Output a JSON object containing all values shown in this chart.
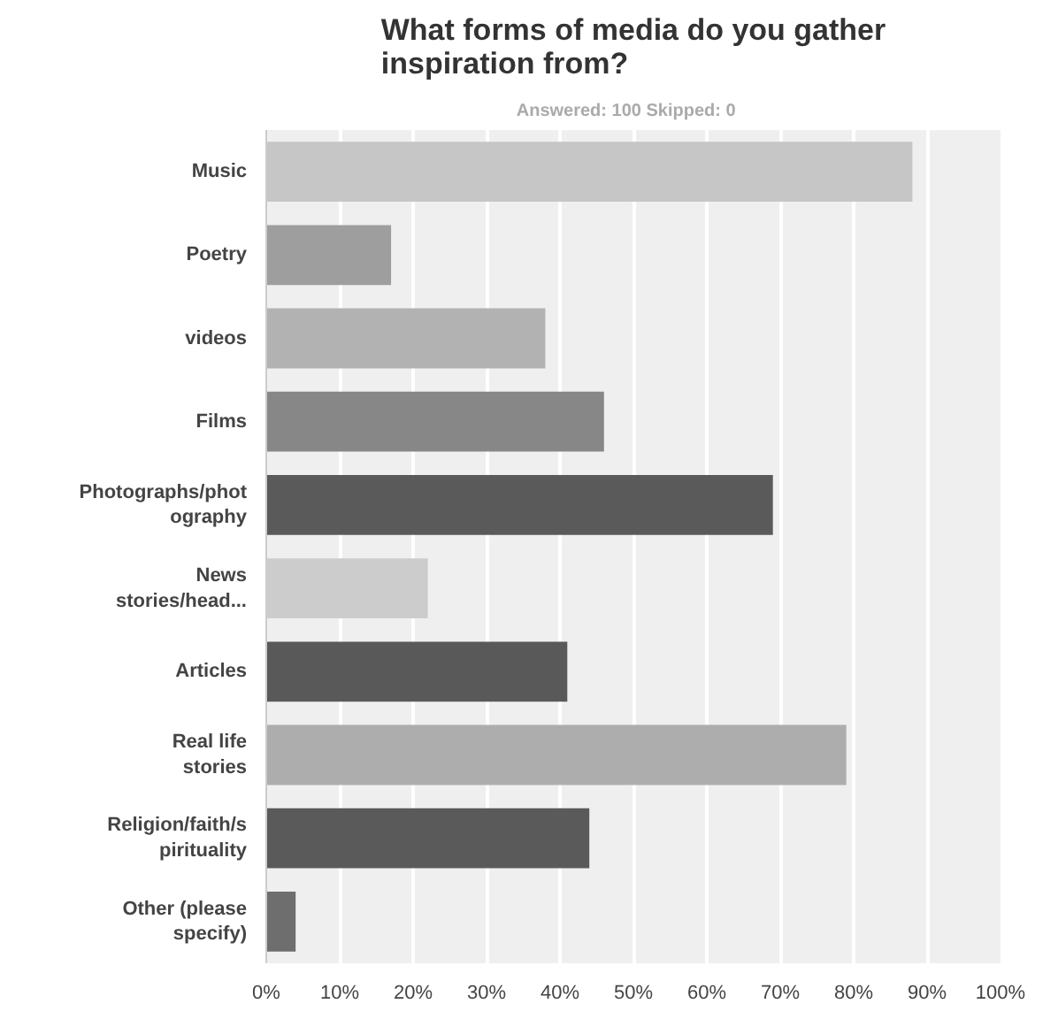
{
  "chart_data": {
    "type": "bar",
    "orientation": "horizontal",
    "title": "What forms of media do you gather inspiration from?",
    "subtitle": "Answered: 100    Skipped: 0",
    "categories": [
      "Music",
      "Poetry",
      "videos",
      "Films",
      "Photographs/photography",
      "News stories/head...",
      "Articles",
      "Real life stories",
      "Religion/faith/spirituality",
      "Other (please specify)"
    ],
    "values": [
      88,
      17,
      38,
      46,
      69,
      22,
      41,
      79,
      44,
      4
    ],
    "colors": [
      "#c6c6c6",
      "#9e9e9e",
      "#b2b2b2",
      "#878787",
      "#5a5a5a",
      "#cccccc",
      "#595959",
      "#adadad",
      "#5a5a5a",
      "#6e6e6e"
    ],
    "xlim": [
      0,
      100
    ],
    "xticks": [
      {
        "value": 0,
        "label": "0%"
      },
      {
        "value": 10,
        "label": "10%"
      },
      {
        "value": 20,
        "label": "20%"
      },
      {
        "value": 30,
        "label": "30%"
      },
      {
        "value": 40,
        "label": "40%"
      },
      {
        "value": 50,
        "label": "50%"
      },
      {
        "value": 60,
        "label": "60%"
      },
      {
        "value": 70,
        "label": "70%"
      },
      {
        "value": 80,
        "label": "80%"
      },
      {
        "value": 90,
        "label": "90%"
      },
      {
        "value": 100,
        "label": "100%"
      }
    ],
    "grid": "x"
  }
}
